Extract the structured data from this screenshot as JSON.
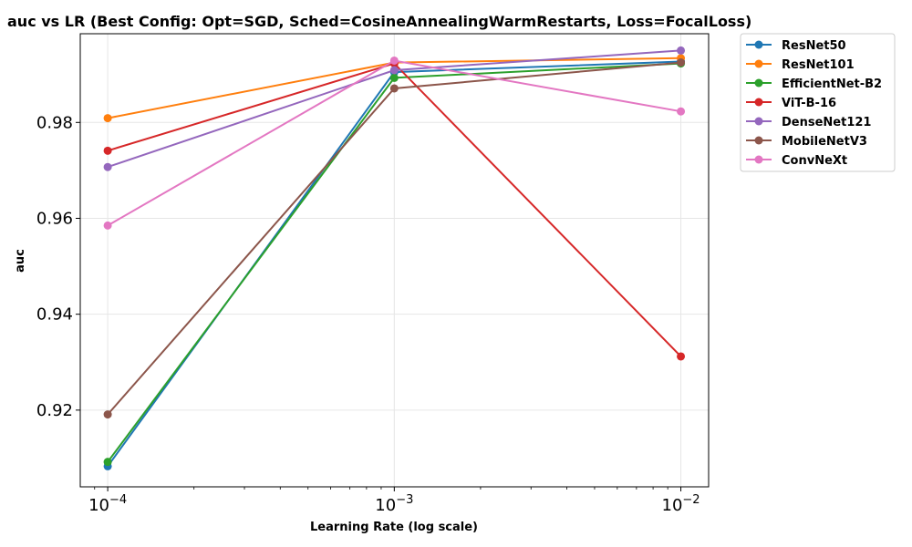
{
  "chart_data": {
    "type": "line",
    "title": "auc vs LR (Best Config: Opt=SGD, Sched=CosineAnnealingWarmRestarts, Loss=FocalLoss)",
    "xlabel": "Learning Rate (log scale)",
    "ylabel": "auc",
    "xscale": "log",
    "x": [
      0.0001,
      0.001,
      0.01
    ],
    "xticks": [
      {
        "base": "10",
        "exp": "−4"
      },
      {
        "base": "10",
        "exp": "−3"
      },
      {
        "base": "10",
        "exp": "−2"
      }
    ],
    "yticks": [
      "0.92",
      "0.94",
      "0.96",
      "0.98"
    ],
    "ylim": [
      0.904,
      0.9985
    ],
    "grid": true,
    "legend_position": "outside-top-right",
    "series": [
      {
        "name": "ResNet50",
        "color": "#1f77b4",
        "values": [
          0.9083,
          0.9905,
          0.9927
        ]
      },
      {
        "name": "ResNet101",
        "color": "#ff7f0e",
        "values": [
          0.9809,
          0.9925,
          0.9934
        ]
      },
      {
        "name": "EfficientNet-B2",
        "color": "#2ca02c",
        "values": [
          0.9092,
          0.9893,
          0.9923
        ]
      },
      {
        "name": "ViT-B-16",
        "color": "#d62728",
        "values": [
          0.9741,
          0.9923,
          0.9312
        ]
      },
      {
        "name": "DenseNet121",
        "color": "#9467bd",
        "values": [
          0.9707,
          0.9909,
          0.995
        ]
      },
      {
        "name": "MobileNetV3",
        "color": "#8c564b",
        "values": [
          0.9191,
          0.9871,
          0.9925
        ]
      },
      {
        "name": "ConvNeXt",
        "color": "#e377c2",
        "values": [
          0.9585,
          0.9929,
          0.9823
        ]
      }
    ]
  }
}
